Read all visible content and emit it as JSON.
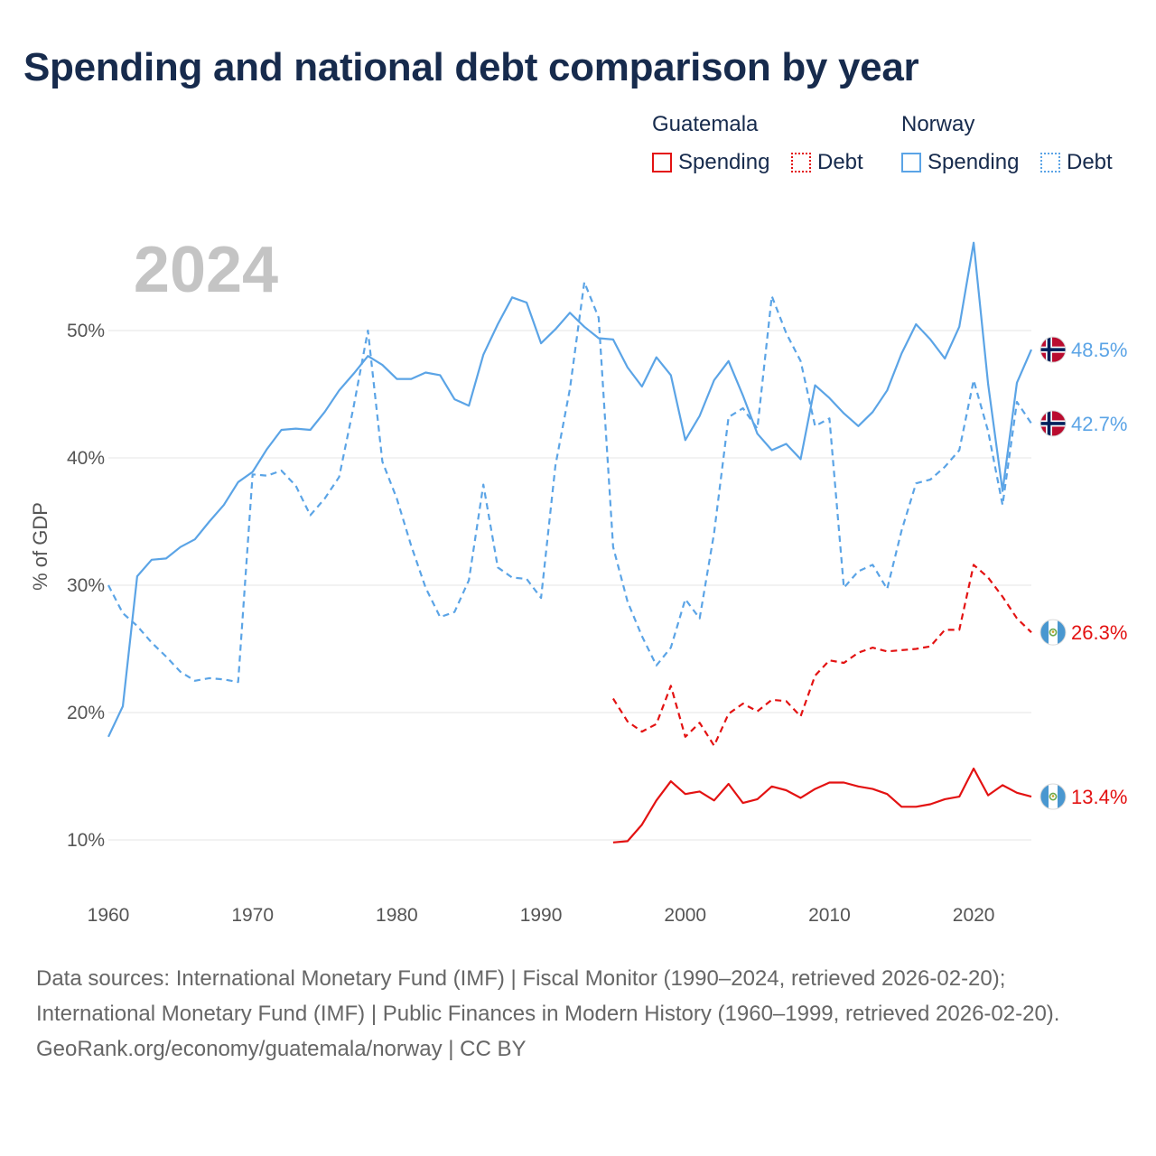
{
  "title": "Spending and national debt comparison by year",
  "legend": {
    "groups": [
      {
        "name": "Guatemala",
        "color": "#e31212",
        "items": [
          {
            "label": "Spending",
            "style": "solid"
          },
          {
            "label": "Debt",
            "style": "dotted"
          }
        ]
      },
      {
        "name": "Norway",
        "color": "#5ba4e6",
        "items": [
          {
            "label": "Spending",
            "style": "solid"
          },
          {
            "label": "Debt",
            "style": "dotted"
          }
        ]
      }
    ]
  },
  "colors": {
    "guatemala": "#e31212",
    "norway": "#5ba4e6",
    "title": "#172b4d",
    "year_watermark": "#c4c4c4",
    "grid": "#e6e6e6"
  },
  "chart_data": {
    "type": "line",
    "current_year_label": "2024",
    "ylabel": "% of GDP",
    "xlabel": "",
    "xlim": [
      1960,
      2024
    ],
    "ylim": [
      6,
      57
    ],
    "x_ticks": [
      1960,
      1970,
      1980,
      1990,
      2000,
      2010,
      2020
    ],
    "y_ticks": [
      {
        "value": 10,
        "label": "10%"
      },
      {
        "value": 20,
        "label": "20%"
      },
      {
        "value": 30,
        "label": "30%"
      },
      {
        "value": 40,
        "label": "40%"
      },
      {
        "value": 50,
        "label": "50%"
      }
    ],
    "grid": true,
    "series": [
      {
        "name": "Norway Spending",
        "country": "Norway",
        "metric": "Spending",
        "color": "#5ba4e6",
        "dash": "solid",
        "start_year": 1960,
        "end_label": "48.5%",
        "flag": "norway-flag-icon",
        "values": [
          18.1,
          20.5,
          30.7,
          32.0,
          32.1,
          33.0,
          33.6,
          35.0,
          36.3,
          38.1,
          38.9,
          40.7,
          42.2,
          42.3,
          42.2,
          43.6,
          45.3,
          46.6,
          48.0,
          47.3,
          46.2,
          46.2,
          46.7,
          46.5,
          44.6,
          44.1,
          48.1,
          50.5,
          52.6,
          52.2,
          49.0,
          50.1,
          51.4,
          50.3,
          49.4,
          49.3,
          47.1,
          45.6,
          47.9,
          46.5,
          41.4,
          43.3,
          46.1,
          47.6,
          44.9,
          41.9,
          40.6,
          41.1,
          39.9,
          45.7,
          44.7,
          43.5,
          42.5,
          43.6,
          45.3,
          48.2,
          50.5,
          49.3,
          47.8,
          50.3,
          56.9,
          45.8,
          37.4,
          45.9,
          48.5
        ]
      },
      {
        "name": "Norway Debt",
        "country": "Norway",
        "metric": "Debt",
        "color": "#5ba4e6",
        "dash": "dashed",
        "start_year": 1960,
        "end_label": "42.7%",
        "flag": "norway-flag-icon",
        "values": [
          30.0,
          27.8,
          26.8,
          25.5,
          24.4,
          23.2,
          22.5,
          22.7,
          22.6,
          22.4,
          38.7,
          38.6,
          39.0,
          37.8,
          35.5,
          36.8,
          38.5,
          44.0,
          50.0,
          39.7,
          36.8,
          33.1,
          29.8,
          27.5,
          27.9,
          30.4,
          37.9,
          31.4,
          30.6,
          30.5,
          29.0,
          39.4,
          45.4,
          53.8,
          51.0,
          33.0,
          28.7,
          26.0,
          23.7,
          25.1,
          28.9,
          27.4,
          34.1,
          43.2,
          43.9,
          42.3,
          52.7,
          49.8,
          47.6,
          42.5,
          43.1,
          29.8,
          31.1,
          31.6,
          29.7,
          34.3,
          38.0,
          38.3,
          39.3,
          40.6,
          46.1,
          42.1,
          36.3,
          44.4,
          42.7
        ]
      },
      {
        "name": "Guatemala Spending",
        "country": "Guatemala",
        "metric": "Spending",
        "color": "#e31212",
        "dash": "solid",
        "start_year": 1995,
        "end_label": "13.4%",
        "flag": "guatemala-flag-icon",
        "values": [
          9.8,
          9.9,
          11.2,
          13.1,
          14.6,
          13.6,
          13.8,
          13.1,
          14.4,
          12.9,
          13.2,
          14.2,
          13.9,
          13.3,
          14.0,
          14.5,
          14.5,
          14.2,
          14.0,
          13.6,
          12.6,
          12.6,
          12.8,
          13.2,
          13.4,
          15.6,
          13.5,
          14.3,
          13.7,
          13.4
        ]
      },
      {
        "name": "Guatemala Debt",
        "country": "Guatemala",
        "metric": "Debt",
        "color": "#e31212",
        "dash": "dashed",
        "start_year": 1995,
        "end_label": "26.3%",
        "flag": "guatemala-flag-icon",
        "values": [
          21.1,
          19.3,
          18.5,
          19.1,
          22.1,
          18.1,
          19.2,
          17.4,
          19.9,
          20.7,
          20.1,
          21.0,
          20.9,
          19.7,
          22.9,
          24.1,
          23.9,
          24.7,
          25.1,
          24.8,
          24.9,
          25.0,
          25.2,
          26.5,
          26.5,
          31.6,
          30.6,
          29.1,
          27.4,
          26.3
        ]
      }
    ]
  },
  "footer": {
    "sources": "Data sources: International Monetary Fund (IMF) | Fiscal Monitor (1990–2024, retrieved 2026-02-20); International Monetary Fund (IMF) | Public Finances in Modern History (1960–1999, retrieved 2026-02-20).",
    "attribution": "GeoRank.org/economy/guatemala/norway | CC BY"
  }
}
